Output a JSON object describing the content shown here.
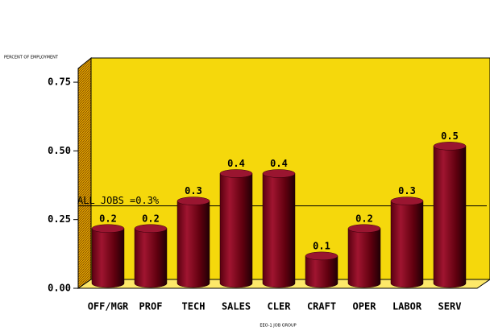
{
  "chart_data": {
    "type": "bar",
    "y_label": "PERCENT OF EMPLOYMENT",
    "x_label": "EEO-1 JOB GROUP",
    "categories": [
      "OFF/MGR",
      "PROF",
      "TECH",
      "SALES",
      "CLER",
      "CRAFT",
      "OPER",
      "LABOR",
      "SERV"
    ],
    "values": [
      0.2,
      0.2,
      0.3,
      0.4,
      0.4,
      0.1,
      0.2,
      0.3,
      0.5
    ],
    "color": "#8b0a20",
    "ylim": [
      0,
      0.8
    ],
    "yticks": [
      {
        "value": 0,
        "label": "0.00"
      },
      0.25,
      {
        "value": 0.5,
        "label": "0.50"
      },
      0.75
    ],
    "reference_line": {
      "value": 0.3,
      "label": "ALL JOBS =0.3%"
    }
  }
}
